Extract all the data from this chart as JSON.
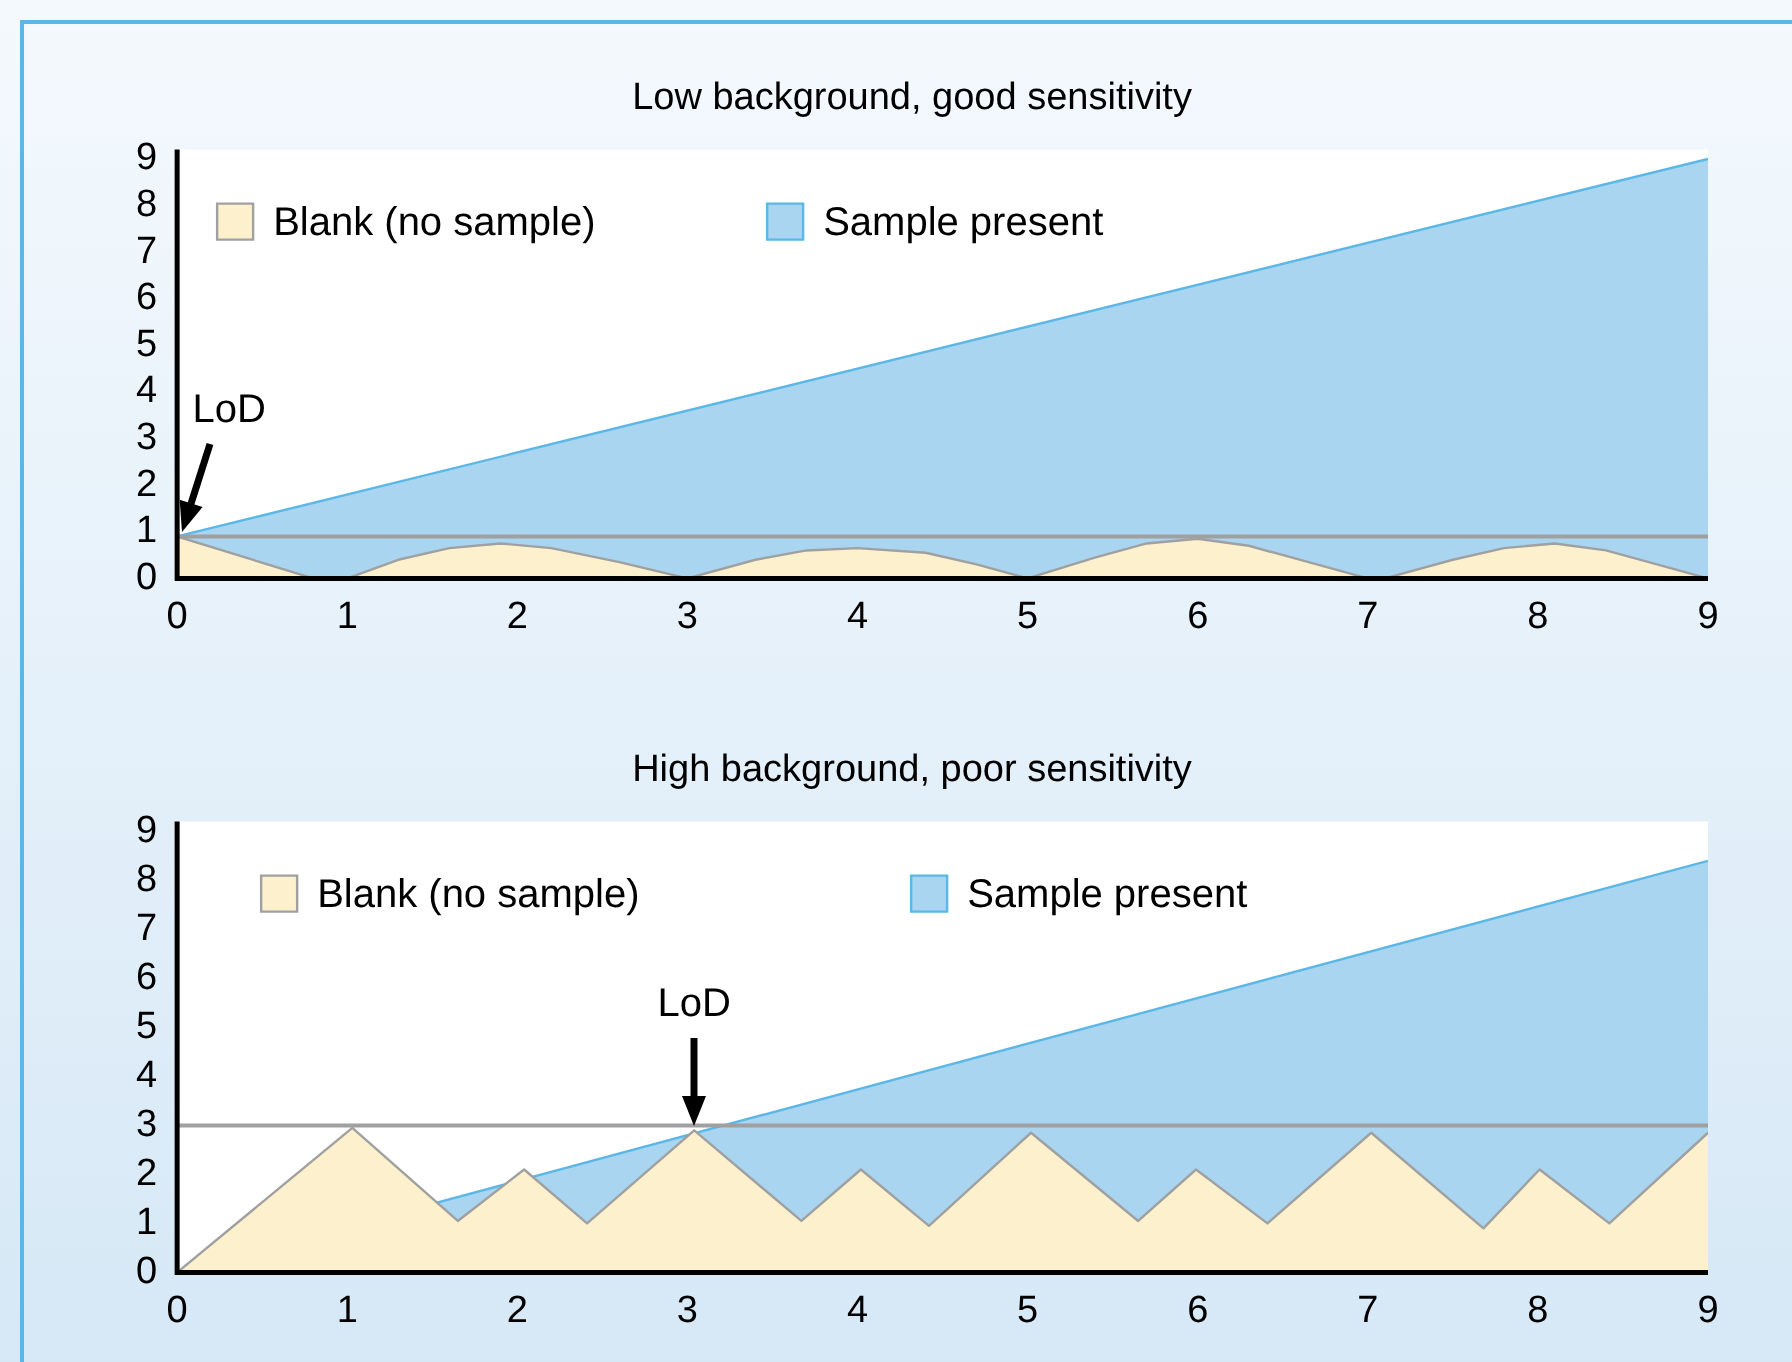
{
  "chart_data": [
    {
      "type": "area",
      "title": "Low background, good sensitivity",
      "legend": "top left",
      "grid": false,
      "xlim": [
        0,
        9
      ],
      "xticks": [
        0,
        1,
        2,
        3,
        4,
        5,
        6,
        7,
        8,
        9
      ],
      "ylim": [
        0,
        9.2
      ],
      "yticks": [
        0,
        1,
        2,
        3,
        4,
        5,
        6,
        7,
        8,
        9
      ],
      "series": [
        {
          "name": "Blank (no sample)",
          "color": "#fdf0cc",
          "x": [
            0,
            0.4,
            0.8,
            1,
            1.3,
            1.6,
            1.9,
            2.2,
            2.6,
            3,
            3.4,
            3.7,
            4,
            4.4,
            4.7,
            5,
            5.4,
            5.7,
            6,
            6.3,
            6.7,
            7,
            7.1,
            7.5,
            7.8,
            8.1,
            8.4,
            8.7,
            9
          ],
          "values": [
            0.9,
            0.45,
            0,
            0,
            0.4,
            0.65,
            0.75,
            0.65,
            0.35,
            0,
            0.4,
            0.6,
            0.65,
            0.55,
            0.3,
            0,
            0.45,
            0.75,
            0.85,
            0.7,
            0.3,
            0,
            0,
            0.4,
            0.65,
            0.75,
            0.6,
            0.3,
            0
          ]
        },
        {
          "name": "Sample present",
          "color": "#a9d5f0",
          "x": [
            0,
            9
          ],
          "values": [
            0.9,
            9
          ]
        }
      ],
      "ref_lines": [
        {
          "axis": "y",
          "value": 0.9,
          "color": "#a0a0a0"
        }
      ],
      "annotations": [
        {
          "text": "LoD",
          "x": 0,
          "y": 0.9
        }
      ]
    },
    {
      "type": "area",
      "title": "High background, poor sensitivity",
      "legend": "top left",
      "grid": false,
      "xlim": [
        0,
        9
      ],
      "xticks": [
        0,
        1,
        2,
        3,
        4,
        5,
        6,
        7,
        8,
        9
      ],
      "ylim": [
        0,
        9.2
      ],
      "yticks": [
        0,
        1,
        2,
        3,
        4,
        5,
        6,
        7,
        8,
        9
      ],
      "series": [
        {
          "name": "Blank (no sample)",
          "color": "#fdf0cc",
          "x": [
            0,
            1.03,
            1.65,
            2.04,
            2.41,
            3.04,
            3.67,
            4.02,
            4.42,
            5.02,
            5.65,
            5.99,
            6.41,
            7.02,
            7.68,
            8.01,
            8.42,
            9
          ],
          "values": [
            0,
            2.95,
            1.05,
            2.1,
            1,
            2.9,
            1.05,
            2.1,
            0.95,
            2.85,
            1.05,
            2.1,
            1,
            2.85,
            0.9,
            2.1,
            1,
            2.85
          ]
        },
        {
          "name": "Sample present",
          "color": "#a9d5f0",
          "x": [
            0,
            9
          ],
          "values": [
            0,
            8.4
          ]
        }
      ],
      "ref_lines": [
        {
          "axis": "y",
          "value": 3,
          "color": "#a0a0a0"
        }
      ],
      "annotations": [
        {
          "text": "LoD",
          "x": 3.04,
          "y": 2.9
        }
      ]
    }
  ]
}
